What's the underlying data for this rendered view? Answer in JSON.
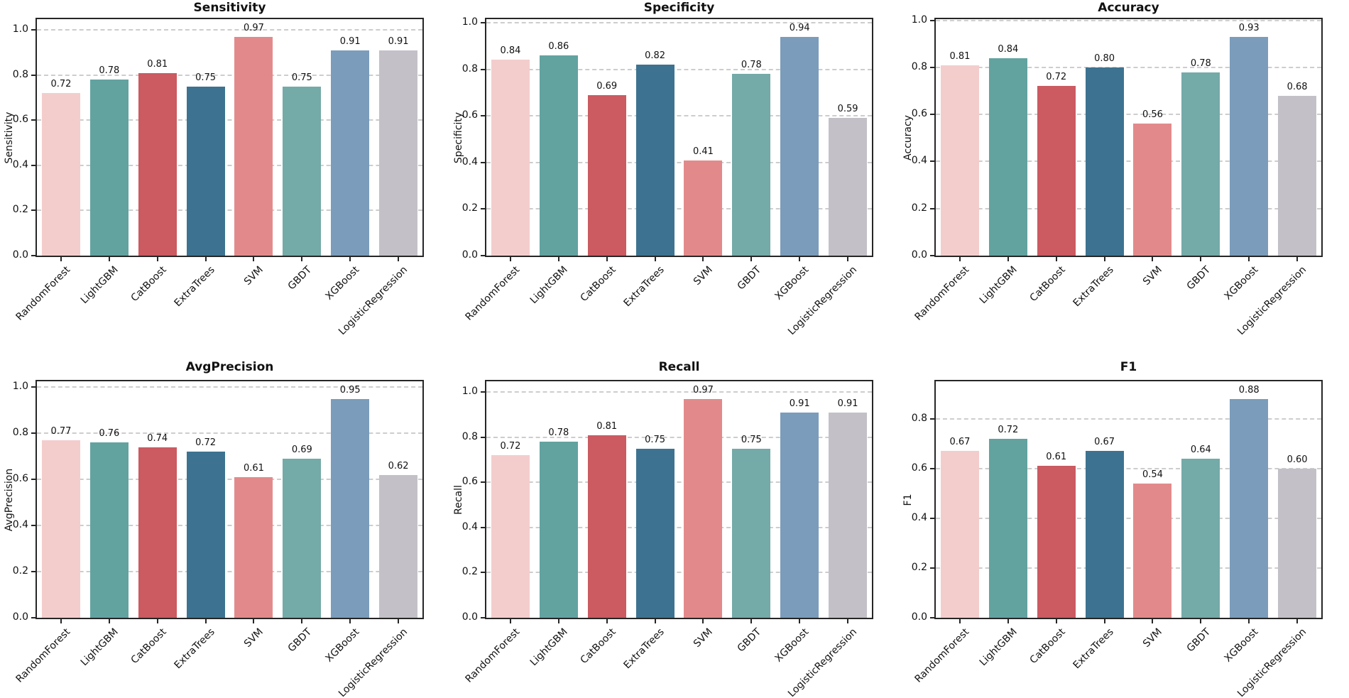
{
  "figure": {
    "models": [
      "RandomForest",
      "LightGBM",
      "CatBoost",
      "ExtraTrees",
      "SVM",
      "GBDT",
      "XGBoost",
      "LogisticRegression"
    ],
    "bar_colors": [
      "#f3cdcc",
      "#62a3a0",
      "#cb5a61",
      "#3d7390",
      "#e28a8b",
      "#74aaa8",
      "#7b9cbb",
      "#c3c0c8"
    ],
    "styles": {
      "axis_color": "#262626",
      "grid_color": "#cdcdcd",
      "text_color": "#111111",
      "background": "#ffffff"
    }
  },
  "chart_data": [
    {
      "type": "bar",
      "title": "Sensitivity",
      "ylabel": "Sensitivity",
      "categories": [
        "RandomForest",
        "LightGBM",
        "CatBoost",
        "ExtraTrees",
        "SVM",
        "GBDT",
        "XGBoost",
        "LogisticRegression"
      ],
      "values": [
        0.72,
        0.78,
        0.81,
        0.75,
        0.97,
        0.75,
        0.91,
        0.91
      ],
      "value_labels": [
        "0.72",
        "0.78",
        "0.81",
        "0.75",
        "0.97",
        "0.75",
        "0.91",
        "0.91"
      ],
      "yticks": [
        0.0,
        0.2,
        0.4,
        0.6,
        0.8,
        1.0
      ],
      "ytick_labels": [
        "0.0",
        "0.2",
        "0.4",
        "0.6",
        "0.8",
        "1.0"
      ],
      "ylim": [
        0,
        1.048
      ],
      "grid": "dashed-horizontal",
      "legend": "none"
    },
    {
      "type": "bar",
      "title": "Specificity",
      "ylabel": "Specificity",
      "categories": [
        "RandomForest",
        "LightGBM",
        "CatBoost",
        "ExtraTrees",
        "SVM",
        "GBDT",
        "XGBoost",
        "LogisticRegression"
      ],
      "values": [
        0.84,
        0.86,
        0.69,
        0.82,
        0.41,
        0.78,
        0.94,
        0.59
      ],
      "value_labels": [
        "0.84",
        "0.86",
        "0.69",
        "0.82",
        "0.41",
        "0.78",
        "0.94",
        "0.59"
      ],
      "yticks": [
        0.0,
        0.2,
        0.4,
        0.6,
        0.8,
        1.0
      ],
      "ytick_labels": [
        "0.0",
        "0.2",
        "0.4",
        "0.6",
        "0.8",
        "1.0"
      ],
      "ylim": [
        0,
        1.015
      ],
      "grid": "dashed-horizontal",
      "legend": "none"
    },
    {
      "type": "bar",
      "title": "Accuracy",
      "ylabel": "Accuracy",
      "categories": [
        "RandomForest",
        "LightGBM",
        "CatBoost",
        "ExtraTrees",
        "SVM",
        "GBDT",
        "XGBoost",
        "LogisticRegression"
      ],
      "values": [
        0.81,
        0.84,
        0.72,
        0.8,
        0.56,
        0.78,
        0.93,
        0.68
      ],
      "value_labels": [
        "0.81",
        "0.84",
        "0.72",
        "0.80",
        "0.56",
        "0.78",
        "0.93",
        "0.68"
      ],
      "yticks": [
        0.0,
        0.2,
        0.4,
        0.6,
        0.8,
        1.0
      ],
      "ytick_labels": [
        "0.0",
        "0.2",
        "0.4",
        "0.6",
        "0.8",
        "1.0"
      ],
      "ylim": [
        0,
        1.005
      ],
      "grid": "dashed-horizontal",
      "legend": "none"
    },
    {
      "type": "bar",
      "title": "AvgPrecision",
      "ylabel": "AvgPrecision",
      "categories": [
        "RandomForest",
        "LightGBM",
        "CatBoost",
        "ExtraTrees",
        "SVM",
        "GBDT",
        "XGBoost",
        "LogisticRegression"
      ],
      "values": [
        0.77,
        0.76,
        0.74,
        0.72,
        0.61,
        0.69,
        0.95,
        0.62
      ],
      "value_labels": [
        "0.77",
        "0.76",
        "0.74",
        "0.72",
        "0.61",
        "0.69",
        "0.95",
        "0.62"
      ],
      "yticks": [
        0.0,
        0.2,
        0.4,
        0.6,
        0.8,
        1.0
      ],
      "ytick_labels": [
        "0.0",
        "0.2",
        "0.4",
        "0.6",
        "0.8",
        "1.0"
      ],
      "ylim": [
        0,
        1.026
      ],
      "grid": "dashed-horizontal",
      "legend": "none"
    },
    {
      "type": "bar",
      "title": "Recall",
      "ylabel": "Recall",
      "categories": [
        "RandomForest",
        "LightGBM",
        "CatBoost",
        "ExtraTrees",
        "SVM",
        "GBDT",
        "XGBoost",
        "LogisticRegression"
      ],
      "values": [
        0.72,
        0.78,
        0.81,
        0.75,
        0.97,
        0.75,
        0.91,
        0.91
      ],
      "value_labels": [
        "0.72",
        "0.78",
        "0.81",
        "0.75",
        "0.97",
        "0.75",
        "0.91",
        "0.91"
      ],
      "yticks": [
        0.0,
        0.2,
        0.4,
        0.6,
        0.8,
        1.0
      ],
      "ytick_labels": [
        "0.0",
        "0.2",
        "0.4",
        "0.6",
        "0.8",
        "1.0"
      ],
      "ylim": [
        0,
        1.048
      ],
      "grid": "dashed-horizontal",
      "legend": "none"
    },
    {
      "type": "bar",
      "title": "F1",
      "ylabel": "F1",
      "categories": [
        "RandomForest",
        "LightGBM",
        "CatBoost",
        "ExtraTrees",
        "SVM",
        "GBDT",
        "XGBoost",
        "LogisticRegression"
      ],
      "values": [
        0.67,
        0.72,
        0.61,
        0.67,
        0.54,
        0.64,
        0.88,
        0.6
      ],
      "value_labels": [
        "0.67",
        "0.72",
        "0.61",
        "0.67",
        "0.54",
        "0.64",
        "0.88",
        "0.60"
      ],
      "yticks": [
        0.0,
        0.2,
        0.4,
        0.6,
        0.8
      ],
      "ytick_labels": [
        "0.0",
        "0.2",
        "0.4",
        "0.6",
        "0.8"
      ],
      "ylim": [
        0,
        0.95
      ],
      "grid": "dashed-horizontal",
      "legend": "none"
    }
  ]
}
